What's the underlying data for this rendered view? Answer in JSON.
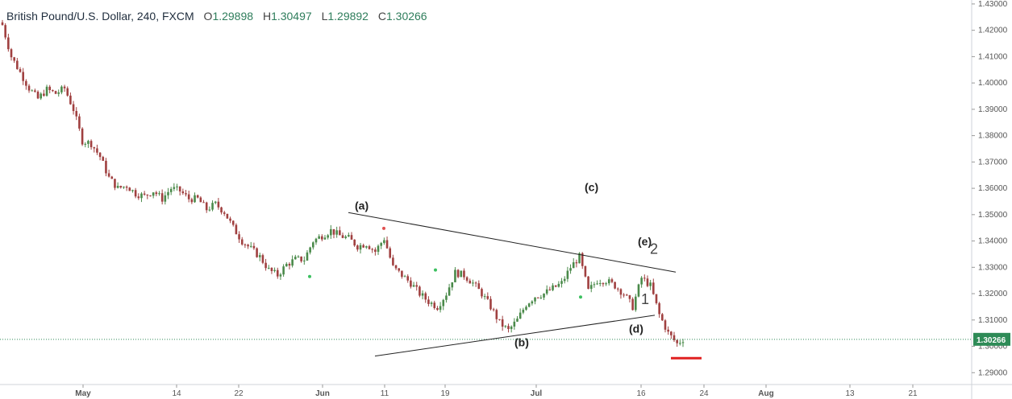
{
  "legend": {
    "symbol": "British Pound/U.S. Dollar, 240, FXCM",
    "o_label": "O",
    "o_value": "1.29898",
    "h_label": "H",
    "h_value": "1.30497",
    "l_label": "L",
    "l_value": "1.29892",
    "c_label": "C",
    "c_value": "1.30266"
  },
  "colors": {
    "up": "#4a8a4a",
    "down": "#a04040",
    "trendline": "#222222",
    "current_price": "#2e8b57",
    "support_marker": "#e02020",
    "dot_green": "#3cc060",
    "dot_red": "#e05050"
  },
  "chart_data": {
    "type": "candlestick",
    "title": "British Pound/U.S. Dollar, 240, FXCM",
    "ylim": [
      1.2855,
      1.4315
    ],
    "y_ticks": [
      "1.43000",
      "1.42000",
      "1.41000",
      "1.40000",
      "1.39000",
      "1.38000",
      "1.37000",
      "1.36000",
      "1.35000",
      "1.34000",
      "1.33000",
      "1.32000",
      "1.31000",
      "1.30000",
      "1.29000"
    ],
    "x_ticks": [
      "May",
      "14",
      "22",
      "Jun",
      "11",
      "19",
      "Jul",
      "16",
      "24",
      "Aug",
      "13",
      "21"
    ],
    "current_price": "1.30266",
    "price_path": [
      [
        0,
        1.422
      ],
      [
        3,
        1.41
      ],
      [
        6,
        1.404
      ],
      [
        9,
        1.398
      ],
      [
        12,
        1.394
      ],
      [
        15,
        1.3975
      ],
      [
        18,
        1.396
      ],
      [
        21,
        1.398
      ],
      [
        24,
        1.39
      ],
      [
        27,
        1.378
      ],
      [
        30,
        1.377
      ],
      [
        33,
        1.372
      ],
      [
        36,
        1.364
      ],
      [
        39,
        1.36
      ],
      [
        42,
        1.361
      ],
      [
        45,
        1.358
      ],
      [
        48,
        1.357
      ],
      [
        51,
        1.359
      ],
      [
        54,
        1.356
      ],
      [
        57,
        1.36
      ],
      [
        60,
        1.359
      ],
      [
        63,
        1.356
      ],
      [
        66,
        1.356
      ],
      [
        69,
        1.352
      ],
      [
        72,
        1.354
      ],
      [
        75,
        1.351
      ],
      [
        78,
        1.345
      ],
      [
        81,
        1.34
      ],
      [
        84,
        1.337
      ],
      [
        87,
        1.334
      ],
      [
        90,
        1.329
      ],
      [
        93,
        1.327
      ],
      [
        96,
        1.331
      ],
      [
        99,
        1.333
      ],
      [
        102,
        1.333
      ],
      [
        105,
        1.34
      ],
      [
        108,
        1.342
      ],
      [
        111,
        1.344
      ],
      [
        114,
        1.342
      ],
      [
        117,
        1.341
      ],
      [
        120,
        1.338
      ],
      [
        123,
        1.339
      ],
      [
        126,
        1.336
      ],
      [
        129,
        1.341
      ],
      [
        132,
        1.33
      ],
      [
        135,
        1.327
      ],
      [
        138,
        1.324
      ],
      [
        141,
        1.32
      ],
      [
        144,
        1.317
      ],
      [
        147,
        1.315
      ],
      [
        150,
        1.32
      ],
      [
        153,
        1.328
      ],
      [
        156,
        1.327
      ],
      [
        159,
        1.324
      ],
      [
        162,
        1.32
      ],
      [
        165,
        1.315
      ],
      [
        168,
        1.309
      ],
      [
        171,
        1.306
      ],
      [
        174,
        1.31
      ],
      [
        177,
        1.316
      ],
      [
        180,
        1.319
      ],
      [
        183,
        1.32
      ],
      [
        186,
        1.322
      ],
      [
        189,
        1.324
      ],
      [
        192,
        1.33
      ],
      [
        195,
        1.334
      ],
      [
        198,
        1.321
      ],
      [
        201,
        1.325
      ],
      [
        204,
        1.325
      ],
      [
        207,
        1.323
      ],
      [
        210,
        1.32
      ],
      [
        213,
        1.315
      ],
      [
        216,
        1.326
      ],
      [
        219,
        1.323
      ],
      [
        222,
        1.312
      ],
      [
        225,
        1.305
      ],
      [
        228,
        1.301
      ],
      [
        230,
        1.3027
      ]
    ],
    "annotations": [
      "(a)",
      "(b)",
      "(c)",
      "(d)",
      "(e)",
      "1",
      "2"
    ]
  }
}
